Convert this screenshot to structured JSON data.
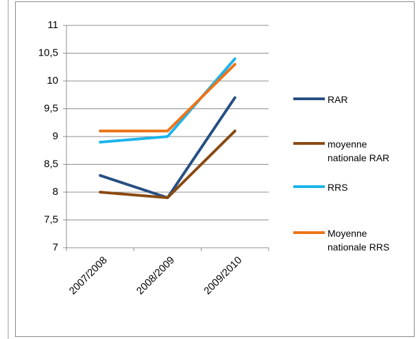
{
  "chart_data": {
    "type": "line",
    "categories": [
      "2007/2008",
      "2008/2009",
      "2009/2010"
    ],
    "series": [
      {
        "name": "RAR",
        "color": "#264f82",
        "values": [
          8.3,
          7.9,
          9.7
        ]
      },
      {
        "name": "moyenne nationale RAR",
        "color": "#8a4a12",
        "values": [
          8.0,
          7.9,
          9.1
        ]
      },
      {
        "name": "RRS",
        "color": "#1cb4ec",
        "values": [
          8.9,
          9.0,
          10.4
        ]
      },
      {
        "name": "Moyenne nationale RRS",
        "color": "#ec7318",
        "values": [
          9.1,
          9.1,
          10.3
        ]
      }
    ],
    "ylim": [
      7,
      11
    ],
    "yticks": [
      7,
      {
        "value": 7.5,
        "label": "7,5"
      },
      8,
      {
        "value": 8.5,
        "label": "8,5"
      },
      9,
      {
        "value": 9.5,
        "label": "9,5"
      },
      10,
      {
        "value": 10.5,
        "label": "10,5"
      },
      11
    ],
    "grid": true,
    "legend": "right"
  }
}
